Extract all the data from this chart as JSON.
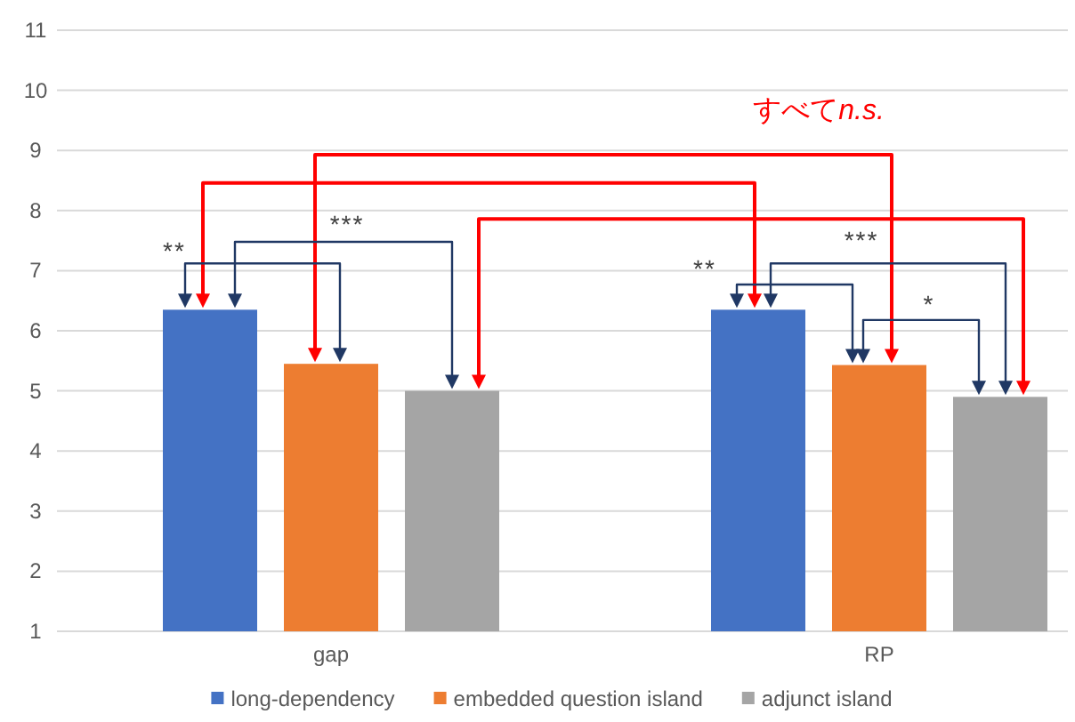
{
  "chart_data": {
    "type": "bar",
    "categories": [
      "gap",
      "RP"
    ],
    "series": [
      {
        "name": "long-dependency",
        "color": "#4472c4",
        "values": [
          6.35,
          6.35
        ]
      },
      {
        "name": "embedded question island",
        "color": "#ed7d31",
        "values": [
          5.45,
          5.43
        ]
      },
      {
        "name": "adjunct island",
        "color": "#a5a5a5",
        "values": [
          5.0,
          4.9
        ]
      }
    ],
    "ylim": [
      1,
      11
    ],
    "yticks": [
      1,
      2,
      3,
      4,
      5,
      6,
      7,
      8,
      9,
      10,
      11
    ],
    "grid": "y",
    "legend": "bottom",
    "annotations": [
      "**",
      "***",
      "**",
      "***",
      "*",
      "すべてn.s."
    ]
  }
}
